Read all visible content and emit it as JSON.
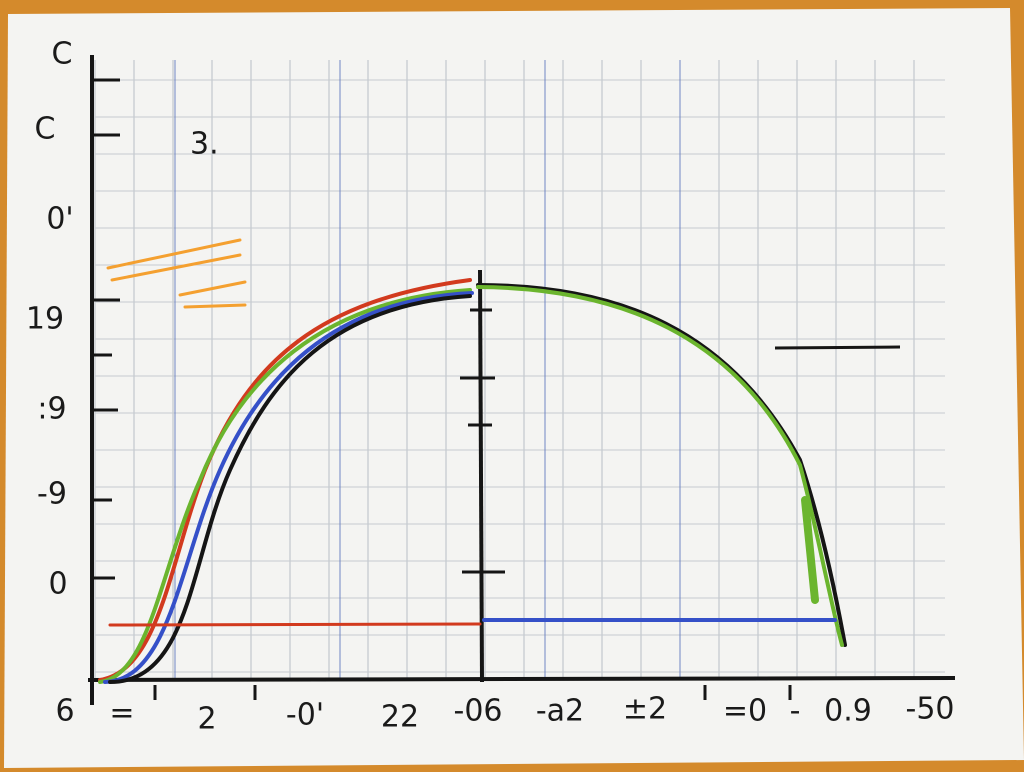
{
  "annotation": "3.",
  "y_labels": [
    "C",
    "C",
    "0'",
    "19",
    ":9",
    "-9",
    "0",
    "6"
  ],
  "x_labels": [
    "=",
    "2",
    "-0'",
    "22",
    "-06",
    "-a2",
    "±2",
    "=0",
    "-",
    "0.9",
    "-50"
  ]
}
